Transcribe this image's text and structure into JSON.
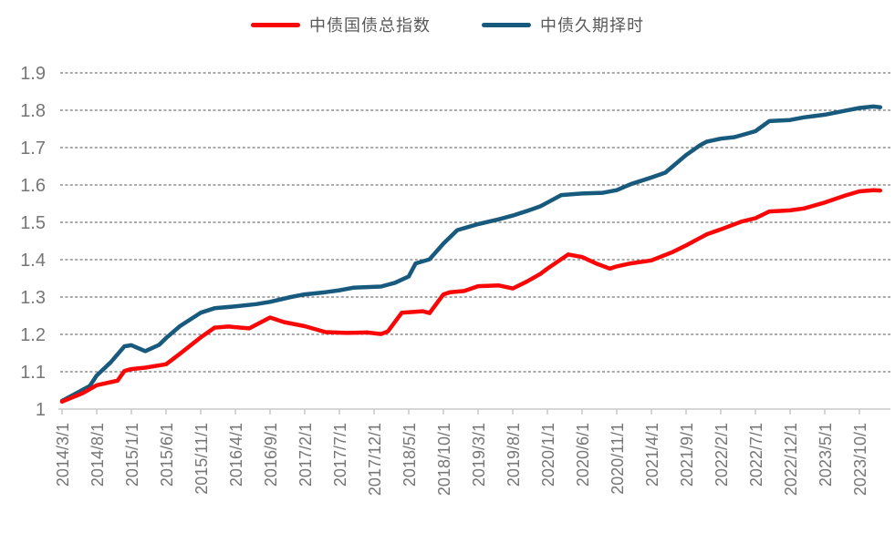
{
  "legend": {
    "items": [
      {
        "label": "中债国债总指数",
        "color": "#f90606"
      },
      {
        "label": "中债久期择时",
        "color": "#175a7d"
      }
    ]
  },
  "chart_data": {
    "type": "line",
    "title": "",
    "legend_position": "top-center",
    "grid": "horizontal-dashed",
    "background": "#ffffff",
    "x_axis": {
      "start_date": "2014/3",
      "tick_interval_months": 5,
      "tick_labels": [
        "2014/3/1",
        "2014/8/1",
        "2015/1/1",
        "2015/6/1",
        "2015/11/1",
        "2016/4/1",
        "2016/9/1",
        "2017/2/1",
        "2017/7/1",
        "2017/12/1",
        "2018/5/1",
        "2018/10/1",
        "2019/3/1",
        "2019/8/1",
        "2020/1/1",
        "2020/6/1",
        "2020/11/1",
        "2021/4/1",
        "2021/9/1",
        "2022/2/1",
        "2022/7/1",
        "2022/12/1",
        "2023/5/1",
        "2023/10/1"
      ]
    },
    "y_axis": {
      "min": 1,
      "max": 1.9,
      "step": 0.1,
      "tick_labels": [
        "1",
        "1.1",
        "1.2",
        "1.3",
        "1.4",
        "1.5",
        "1.6",
        "1.7",
        "1.8",
        "1.9"
      ]
    },
    "series": [
      {
        "name": "中债国债总指数",
        "color": "#f90606",
        "points": [
          [
            "2014/3",
            1.02
          ],
          [
            "2014/6",
            1.043
          ],
          [
            "2014/8",
            1.064
          ],
          [
            "2014/11",
            1.076
          ],
          [
            "2014/12",
            1.102
          ],
          [
            "2015/1",
            1.107
          ],
          [
            "2015/3",
            1.111
          ],
          [
            "2015/6",
            1.12
          ],
          [
            "2015/8",
            1.148
          ],
          [
            "2015/11",
            1.192
          ],
          [
            "2016/1",
            1.218
          ],
          [
            "2016/3",
            1.221
          ],
          [
            "2016/6",
            1.216
          ],
          [
            "2016/9",
            1.245
          ],
          [
            "2016/11",
            1.233
          ],
          [
            "2017/2",
            1.222
          ],
          [
            "2017/5",
            1.206
          ],
          [
            "2017/8",
            1.204
          ],
          [
            "2017/11",
            1.205
          ],
          [
            "2018/1",
            1.201
          ],
          [
            "2018/2",
            1.208
          ],
          [
            "2018/4",
            1.258
          ],
          [
            "2018/7",
            1.262
          ],
          [
            "2018/8",
            1.257
          ],
          [
            "2018/10",
            1.307
          ],
          [
            "2018/11",
            1.313
          ],
          [
            "2019/1",
            1.316
          ],
          [
            "2019/3",
            1.329
          ],
          [
            "2019/6",
            1.331
          ],
          [
            "2019/8",
            1.323
          ],
          [
            "2019/10",
            1.341
          ],
          [
            "2019/12",
            1.362
          ],
          [
            "2020/1",
            1.376
          ],
          [
            "2020/4",
            1.414
          ],
          [
            "2020/6",
            1.407
          ],
          [
            "2020/8",
            1.39
          ],
          [
            "2020/10",
            1.376
          ],
          [
            "2020/11",
            1.382
          ],
          [
            "2021/1",
            1.39
          ],
          [
            "2021/4",
            1.398
          ],
          [
            "2021/7",
            1.42
          ],
          [
            "2021/9",
            1.438
          ],
          [
            "2021/12",
            1.468
          ],
          [
            "2022/2",
            1.481
          ],
          [
            "2022/5",
            1.502
          ],
          [
            "2022/7",
            1.511
          ],
          [
            "2022/9",
            1.529
          ],
          [
            "2022/12",
            1.532
          ],
          [
            "2023/2",
            1.537
          ],
          [
            "2023/5",
            1.553
          ],
          [
            "2023/8",
            1.572
          ],
          [
            "2023/10",
            1.583
          ],
          [
            "2023/12",
            1.586
          ],
          [
            "2024/1",
            1.585
          ]
        ]
      },
      {
        "name": "中债久期择时",
        "color": "#175a7d",
        "points": [
          [
            "2014/3",
            1.022
          ],
          [
            "2014/5",
            1.042
          ],
          [
            "2014/7",
            1.062
          ],
          [
            "2014/8",
            1.09
          ],
          [
            "2014/10",
            1.125
          ],
          [
            "2014/12",
            1.168
          ],
          [
            "2015/1",
            1.171
          ],
          [
            "2015/3",
            1.155
          ],
          [
            "2015/5",
            1.172
          ],
          [
            "2015/6",
            1.19
          ],
          [
            "2015/8",
            1.222
          ],
          [
            "2015/11",
            1.258
          ],
          [
            "2016/1",
            1.27
          ],
          [
            "2016/4",
            1.275
          ],
          [
            "2016/7",
            1.281
          ],
          [
            "2016/9",
            1.287
          ],
          [
            "2016/12",
            1.3
          ],
          [
            "2017/2",
            1.307
          ],
          [
            "2017/5",
            1.313
          ],
          [
            "2017/7",
            1.318
          ],
          [
            "2017/9",
            1.325
          ],
          [
            "2018/1",
            1.328
          ],
          [
            "2018/3",
            1.338
          ],
          [
            "2018/5",
            1.355
          ],
          [
            "2018/6",
            1.39
          ],
          [
            "2018/8",
            1.401
          ],
          [
            "2018/10",
            1.443
          ],
          [
            "2018/12",
            1.479
          ],
          [
            "2019/3",
            1.495
          ],
          [
            "2019/6",
            1.508
          ],
          [
            "2019/8",
            1.518
          ],
          [
            "2019/10",
            1.53
          ],
          [
            "2019/12",
            1.543
          ],
          [
            "2020/1",
            1.553
          ],
          [
            "2020/3",
            1.573
          ],
          [
            "2020/6",
            1.577
          ],
          [
            "2020/9",
            1.579
          ],
          [
            "2020/11",
            1.586
          ],
          [
            "2021/1",
            1.602
          ],
          [
            "2021/4",
            1.62
          ],
          [
            "2021/6",
            1.633
          ],
          [
            "2021/9",
            1.68
          ],
          [
            "2021/11",
            1.706
          ],
          [
            "2021/12",
            1.716
          ],
          [
            "2022/2",
            1.724
          ],
          [
            "2022/4",
            1.728
          ],
          [
            "2022/7",
            1.744
          ],
          [
            "2022/9",
            1.771
          ],
          [
            "2022/12",
            1.774
          ],
          [
            "2023/2",
            1.781
          ],
          [
            "2023/5",
            1.788
          ],
          [
            "2023/8",
            1.799
          ],
          [
            "2023/10",
            1.806
          ],
          [
            "2023/12",
            1.81
          ],
          [
            "2024/1",
            1.808
          ]
        ]
      }
    ],
    "style": {
      "gridline_color": "#555555",
      "axis_line_color": "#c9c9c9",
      "tick_color": "#c9c9c9",
      "axis_label_color": "#767676",
      "line_width": 4.5
    }
  }
}
